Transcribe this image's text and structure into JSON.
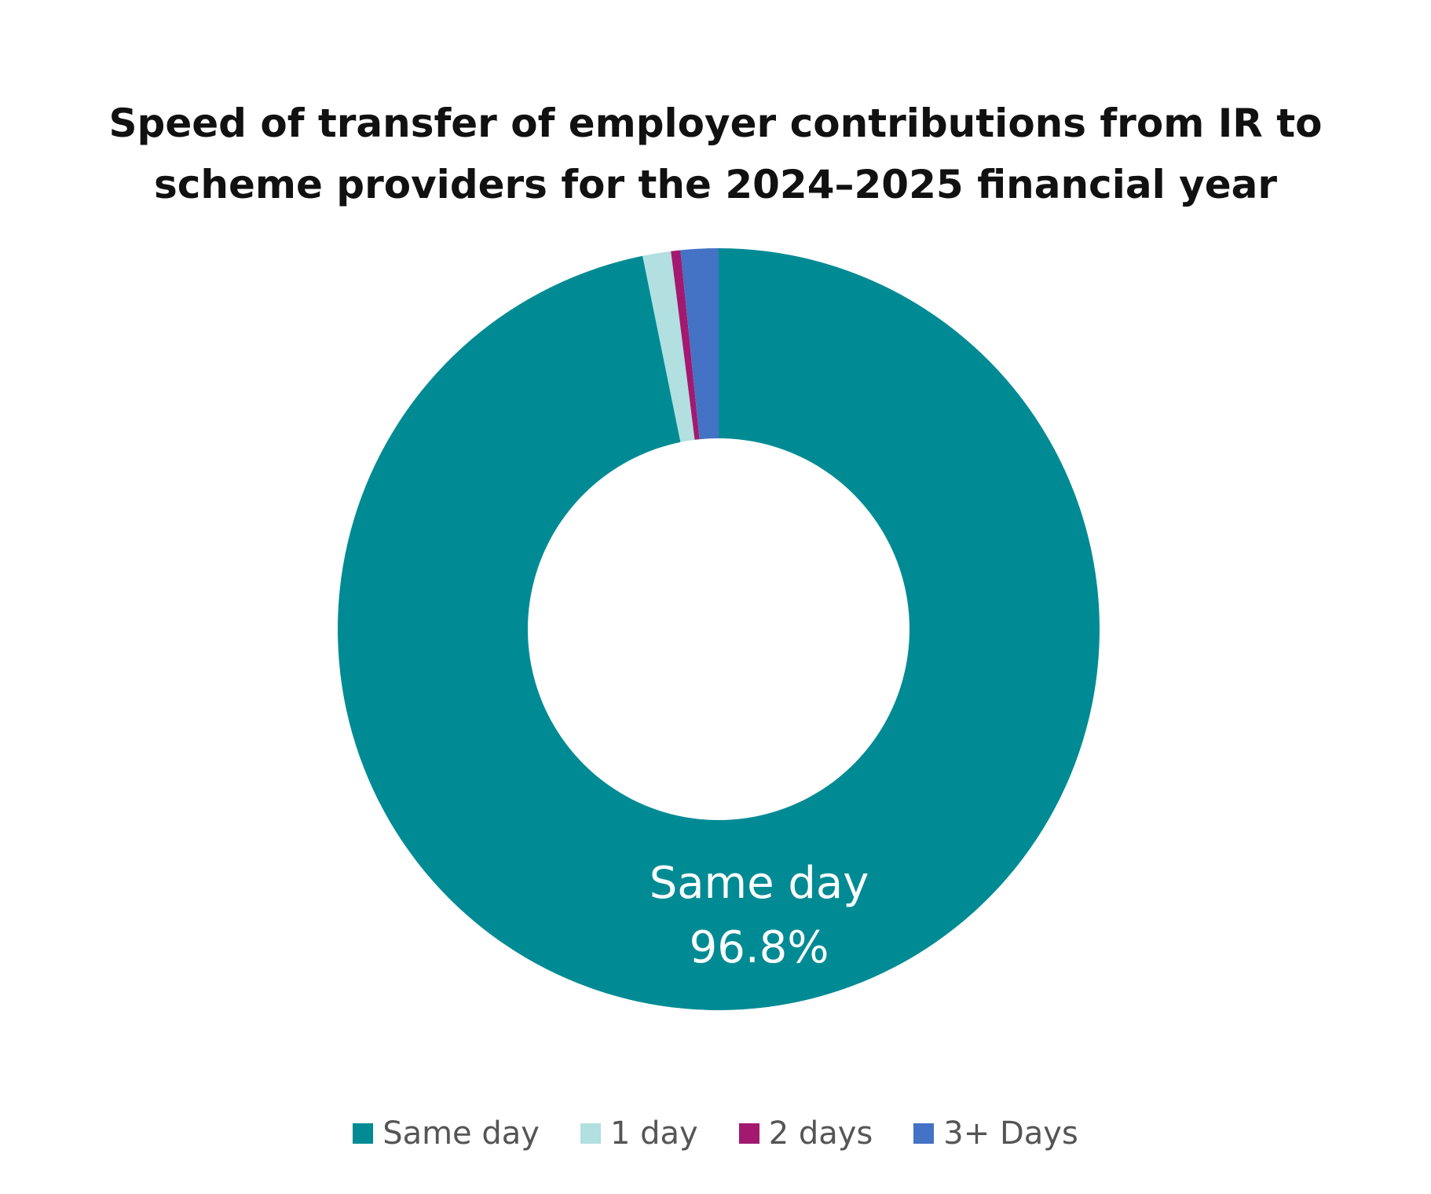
{
  "chart_data": {
    "type": "pie",
    "variant": "donut",
    "title_lines": [
      "Speed of transfer of employer contributions from IR to",
      "scheme providers for the 2024–2025 financial year"
    ],
    "categories": [
      "Same day",
      "1 day",
      "2 days",
      "3+ Days"
    ],
    "values": [
      96.8,
      1.2,
      0.4,
      1.6
    ],
    "unit": "%",
    "colors": [
      "#008b94",
      "#b2dfdf",
      "#a3196f",
      "#4472c4"
    ],
    "slice_labels": [
      {
        "category": "Same day",
        "name": "Same day",
        "value_text": "96.8%"
      }
    ],
    "legend": {
      "position": "bottom",
      "entries": [
        "Same day",
        "1 day",
        "2 days",
        "3+ Days"
      ]
    }
  }
}
